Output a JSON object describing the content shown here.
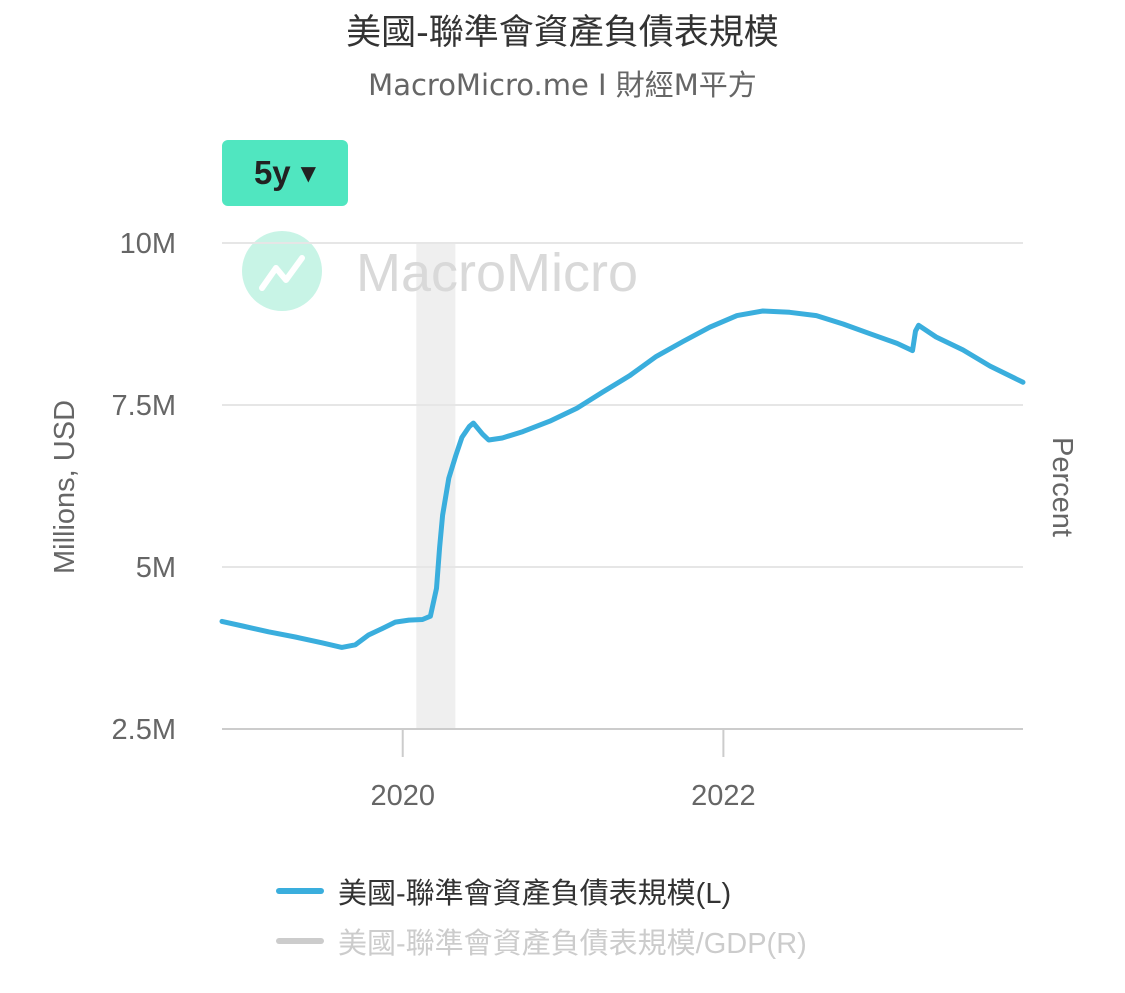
{
  "title": "美國-聯準會資產負債表規模",
  "subtitle": "MacroMicro.me I 財經M平方",
  "range_selector": {
    "label": "5y",
    "caret": "▼"
  },
  "watermark": "MacroMicro",
  "colors": {
    "series": "#3aaedd",
    "series_inactive": "#cccccc",
    "button": "#50e6c0",
    "recession": "#efefef"
  },
  "chart_data": {
    "type": "line",
    "title": "美國-聯準會資產負債表規模",
    "ylabel_left": "Millions, USD",
    "ylabel_right": "Percent",
    "y_axis_left": {
      "ticks": [
        2500000,
        5000000,
        7500000,
        10000000
      ],
      "tick_labels": [
        "2.5M",
        "5M",
        "7.5M",
        "10M"
      ],
      "range": [
        2500000,
        10000000
      ]
    },
    "x_axis": {
      "range": [
        "2018-11-15",
        "2023-11-15"
      ],
      "ticks": [
        "2020-01-01",
        "2022-01-01"
      ],
      "tick_labels": [
        "2020",
        "2022"
      ]
    },
    "grid": true,
    "legend_position": "bottom",
    "shaded_periods": [
      {
        "start": "2020-02-01",
        "end": "2020-04-30"
      }
    ],
    "series": [
      {
        "name": "美國-聯準會資產負債表規模(L)",
        "axis": "left",
        "active": true,
        "points": [
          [
            "2018-11-15",
            4160000
          ],
          [
            "2019-01-01",
            4090000
          ],
          [
            "2019-03-01",
            4000000
          ],
          [
            "2019-05-01",
            3920000
          ],
          [
            "2019-07-01",
            3830000
          ],
          [
            "2019-08-15",
            3760000
          ],
          [
            "2019-09-15",
            3800000
          ],
          [
            "2019-10-15",
            3950000
          ],
          [
            "2019-11-15",
            4050000
          ],
          [
            "2019-12-15",
            4150000
          ],
          [
            "2020-01-15",
            4180000
          ],
          [
            "2020-02-15",
            4190000
          ],
          [
            "2020-03-04",
            4240000
          ],
          [
            "2020-03-18",
            4670000
          ],
          [
            "2020-03-25",
            5300000
          ],
          [
            "2020-04-01",
            5800000
          ],
          [
            "2020-04-15",
            6370000
          ],
          [
            "2020-05-01",
            6720000
          ],
          [
            "2020-05-15",
            7000000
          ],
          [
            "2020-06-01",
            7170000
          ],
          [
            "2020-06-10",
            7220000
          ],
          [
            "2020-07-01",
            7050000
          ],
          [
            "2020-07-15",
            6960000
          ],
          [
            "2020-08-15",
            6990000
          ],
          [
            "2020-10-01",
            7090000
          ],
          [
            "2020-12-01",
            7250000
          ],
          [
            "2021-02-01",
            7450000
          ],
          [
            "2021-04-01",
            7700000
          ],
          [
            "2021-06-01",
            7950000
          ],
          [
            "2021-08-01",
            8250000
          ],
          [
            "2021-10-01",
            8480000
          ],
          [
            "2021-12-01",
            8700000
          ],
          [
            "2022-02-01",
            8880000
          ],
          [
            "2022-04-01",
            8950000
          ],
          [
            "2022-06-01",
            8930000
          ],
          [
            "2022-08-01",
            8880000
          ],
          [
            "2022-10-01",
            8750000
          ],
          [
            "2022-12-01",
            8600000
          ],
          [
            "2023-02-01",
            8450000
          ],
          [
            "2023-03-08",
            8340000
          ],
          [
            "2023-03-15",
            8640000
          ],
          [
            "2023-03-22",
            8730000
          ],
          [
            "2023-05-01",
            8550000
          ],
          [
            "2023-07-01",
            8350000
          ],
          [
            "2023-09-01",
            8100000
          ],
          [
            "2023-11-15",
            7850000
          ]
        ]
      },
      {
        "name": "美國-聯準會資產負債表規模/GDP(R)",
        "axis": "right",
        "active": false,
        "points": []
      }
    ]
  }
}
